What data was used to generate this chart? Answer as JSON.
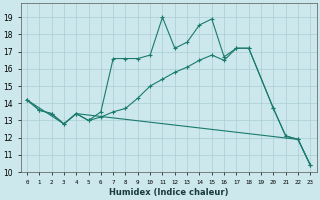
{
  "title": "",
  "xlabel": "Humidex (Indice chaleur)",
  "bg_color": "#cce8ec",
  "grid_color": "#aacdd4",
  "line_color": "#1a7a6e",
  "xlim": [
    -0.5,
    23.5
  ],
  "ylim": [
    10.0,
    19.8
  ],
  "yticks": [
    10,
    11,
    12,
    13,
    14,
    15,
    16,
    17,
    18,
    19
  ],
  "xticks": [
    0,
    1,
    2,
    3,
    4,
    5,
    6,
    7,
    8,
    9,
    10,
    11,
    12,
    13,
    14,
    15,
    16,
    17,
    18,
    19,
    20,
    21,
    22,
    23
  ],
  "line1_x": [
    0,
    1,
    2,
    3,
    4,
    5,
    6,
    7,
    8,
    9,
    10,
    11,
    12,
    13,
    14,
    15,
    16,
    17,
    18,
    20,
    21,
    22,
    23
  ],
  "line1_y": [
    14.2,
    13.6,
    13.4,
    12.8,
    13.4,
    13.0,
    13.5,
    16.6,
    16.6,
    16.6,
    16.8,
    19.0,
    17.2,
    17.55,
    18.55,
    18.9,
    16.7,
    17.2,
    17.2,
    13.7,
    12.1,
    11.9,
    10.4
  ],
  "line2_x": [
    0,
    1,
    2,
    3,
    4,
    5,
    6,
    7,
    8,
    9,
    10,
    11,
    12,
    13,
    14,
    15,
    16,
    17,
    18,
    20,
    21,
    22,
    23
  ],
  "line2_y": [
    14.2,
    13.6,
    13.4,
    12.8,
    13.4,
    13.0,
    13.2,
    13.5,
    13.7,
    14.3,
    15.0,
    15.4,
    15.8,
    16.1,
    16.5,
    16.8,
    16.5,
    17.2,
    17.2,
    13.7,
    12.1,
    11.9,
    10.4
  ],
  "line3_x": [
    0,
    3,
    4,
    22,
    23
  ],
  "line3_y": [
    14.2,
    12.8,
    13.4,
    11.9,
    10.4
  ],
  "ytick_fontsize": 5.5,
  "xtick_fontsize": 4.2,
  "xlabel_fontsize": 6.0
}
